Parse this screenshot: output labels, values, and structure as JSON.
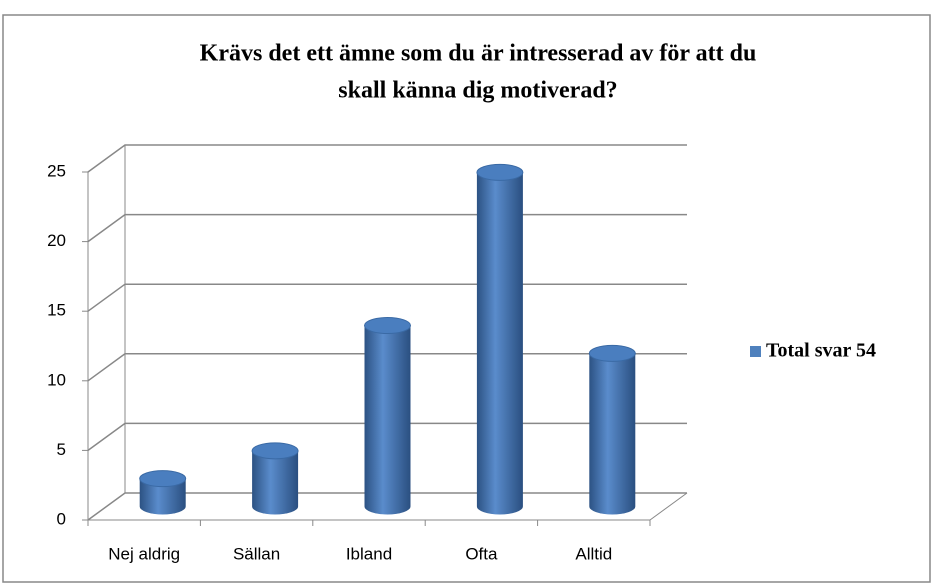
{
  "chart_data": {
    "type": "bar3d",
    "title": [
      "Krävs det ett ämne som du är intresserad av för att du",
      "skall känna dig motiverad?"
    ],
    "categories": [
      "Nej aldrig",
      "Sällan",
      "Ibland",
      "Ofta",
      "Alltid"
    ],
    "series": [
      {
        "name": "Total svar 54",
        "color": "#4f81bd",
        "values": [
          2,
          4,
          13,
          24,
          11
        ]
      }
    ],
    "ylim": [
      0,
      25
    ],
    "yticks": [
      0,
      5,
      10,
      15,
      20,
      25
    ],
    "grid": true,
    "legend": "right"
  }
}
